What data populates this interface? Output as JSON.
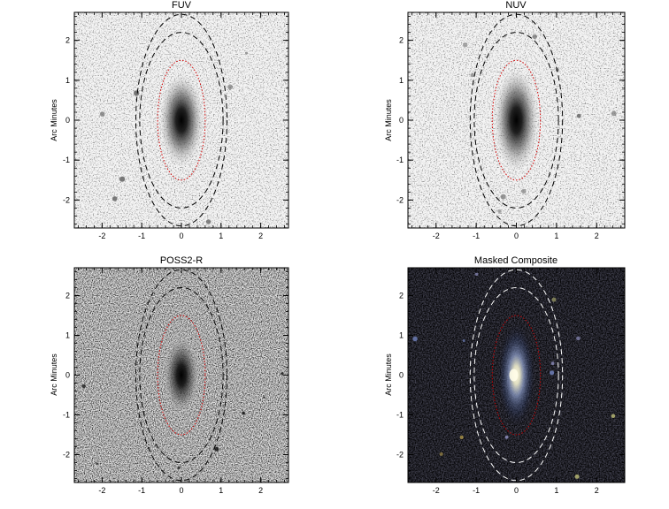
{
  "chart_data": [
    {
      "type": "image",
      "title": "FUV",
      "xlabel": "",
      "ylabel": "Arc Minutes",
      "xlim": [
        -2.7,
        2.7
      ],
      "ylim": [
        -2.7,
        2.7
      ],
      "xticks": [
        -2,
        -1,
        0,
        1,
        2
      ],
      "yticks": [
        -2,
        -1,
        0,
        1,
        2
      ],
      "colormap": "grayscale-inverted",
      "background_level": "light",
      "galaxy": {
        "center": [
          0,
          0
        ],
        "semi_major_arcmin": 0.9,
        "semi_minor_arcmin": 0.35
      },
      "ellipses": [
        {
          "style": "dotted",
          "color": "#d00000",
          "semi_major": 1.5,
          "semi_minor": 0.6
        },
        {
          "style": "dashed",
          "color": "#000000",
          "semi_major": 2.2,
          "semi_minor": 1.05
        },
        {
          "style": "dashed",
          "color": "#000000",
          "semi_major": 2.65,
          "semi_minor": 1.15
        }
      ]
    },
    {
      "type": "image",
      "title": "NUV",
      "xlabel": "",
      "ylabel": "Arc Minutes",
      "xlim": [
        -2.7,
        2.7
      ],
      "ylim": [
        -2.7,
        2.7
      ],
      "xticks": [
        -2,
        -1,
        0,
        1,
        2
      ],
      "yticks": [
        -2,
        -1,
        0,
        1,
        2
      ],
      "colormap": "grayscale-inverted",
      "background_level": "light",
      "galaxy": {
        "center": [
          0,
          0
        ],
        "semi_major_arcmin": 1.0,
        "semi_minor_arcmin": 0.35
      },
      "ellipses": [
        {
          "style": "dotted",
          "color": "#d00000",
          "semi_major": 1.5,
          "semi_minor": 0.6
        },
        {
          "style": "dashed",
          "color": "#000000",
          "semi_major": 2.2,
          "semi_minor": 1.05
        },
        {
          "style": "dashed",
          "color": "#000000",
          "semi_major": 2.65,
          "semi_minor": 1.15
        }
      ]
    },
    {
      "type": "image",
      "title": "POSS2-R",
      "xlabel": "",
      "ylabel": "Arc Minutes",
      "xlim": [
        -2.7,
        2.7
      ],
      "ylim": [
        -2.7,
        2.7
      ],
      "xticks": [
        -2,
        -1,
        0,
        1,
        2
      ],
      "yticks": [
        -2,
        -1,
        0,
        1,
        2
      ],
      "colormap": "grayscale-inverted",
      "background_level": "mid",
      "galaxy": {
        "center": [
          0,
          0
        ],
        "semi_major_arcmin": 0.8,
        "semi_minor_arcmin": 0.3
      },
      "ellipses": [
        {
          "style": "dotted",
          "color": "#d00000",
          "semi_major": 1.5,
          "semi_minor": 0.6
        },
        {
          "style": "dashed",
          "color": "#000000",
          "semi_major": 2.2,
          "semi_minor": 1.05
        },
        {
          "style": "dashed",
          "color": "#000000",
          "semi_major": 2.65,
          "semi_minor": 1.15
        }
      ]
    },
    {
      "type": "image",
      "title": "Masked Composite",
      "xlabel": "",
      "ylabel": "Arc Minutes",
      "xlim": [
        -2.7,
        2.7
      ],
      "ylim": [
        -2.7,
        2.7
      ],
      "xticks": [
        -2,
        -1,
        0,
        1,
        2
      ],
      "yticks": [
        -2,
        -1,
        0,
        1,
        2
      ],
      "colormap": "rgb-composite",
      "background_level": "dark",
      "galaxy": {
        "center": [
          0,
          0
        ],
        "semi_major_arcmin": 1.0,
        "semi_minor_arcmin": 0.3
      },
      "ellipses": [
        {
          "style": "dotted",
          "color": "#c00000",
          "semi_major": 1.5,
          "semi_minor": 0.6
        },
        {
          "style": "dashed",
          "color": "#ffffff",
          "semi_major": 2.2,
          "semi_minor": 1.05
        },
        {
          "style": "dashed",
          "color": "#ffffff",
          "semi_major": 2.65,
          "semi_minor": 1.15
        }
      ]
    }
  ]
}
